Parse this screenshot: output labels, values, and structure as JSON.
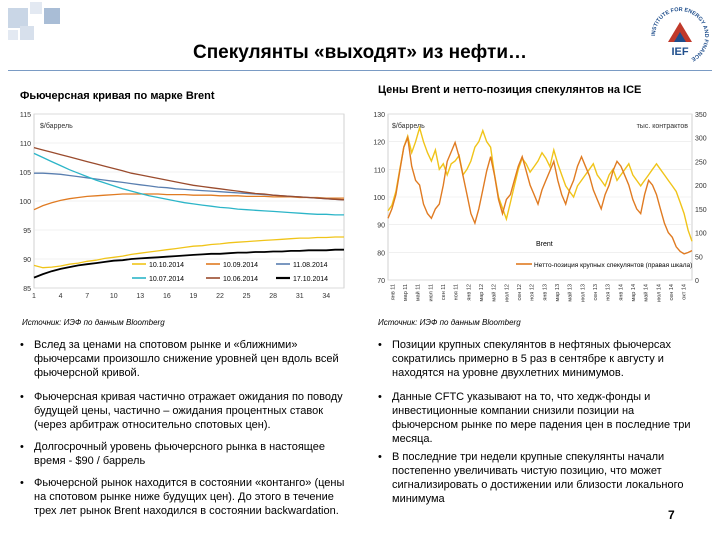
{
  "slide": {
    "title": "Спекулянты «выходят» из нефти…",
    "page_number": "7",
    "logo_text": "IEF",
    "logo_ring_text": "INSTITUTE FOR ENERGY AND FINANCE",
    "colors": {
      "accent": "#7a9bc4",
      "logo_red": "#c0392b",
      "logo_blue": "#1f4e8c"
    }
  },
  "left_chart": {
    "heading": "Фьючерсная кривая по марке Brent",
    "source": "Источник: ИЭФ по данным Bloomberg",
    "chart_data": {
      "type": "line",
      "ylabel": "$/баррель",
      "ylim": [
        85,
        115
      ],
      "yticks": [
        85,
        90,
        95,
        100,
        105,
        110,
        115
      ],
      "xticks": [
        1,
        4,
        7,
        10,
        13,
        16,
        19,
        22,
        25,
        28,
        31,
        34
      ],
      "x_range": [
        1,
        36
      ],
      "series": [
        {
          "name": "10.10.2014",
          "color": "#f0c419",
          "values": [
            88.9,
            88.5,
            88.6,
            88.8,
            89.1,
            89.3,
            89.6,
            89.8,
            90.1,
            90.3,
            90.5,
            90.8,
            91.0,
            91.2,
            91.4,
            91.6,
            91.8,
            92.0,
            92.2,
            92.3,
            92.5,
            92.6,
            92.8,
            92.9,
            93.0,
            93.1,
            93.2,
            93.3,
            93.4,
            93.5,
            93.6,
            93.6,
            93.7,
            93.7,
            93.8,
            93.8
          ]
        },
        {
          "name": "10.09.2014",
          "color": "#e07b22",
          "values": [
            98.5,
            99.2,
            99.7,
            100.1,
            100.4,
            100.6,
            100.8,
            100.9,
            101.0,
            101.1,
            101.2,
            101.2,
            101.2,
            101.2,
            101.2,
            101.1,
            101.1,
            101.1,
            101.0,
            101.0,
            101.0,
            100.9,
            100.9,
            100.9,
            100.8,
            100.8,
            100.8,
            100.7,
            100.7,
            100.7,
            100.6,
            100.6,
            100.6,
            100.5,
            100.5,
            100.5
          ]
        },
        {
          "name": "11.08.2014",
          "color": "#5a7fb0",
          "values": [
            104.8,
            104.8,
            104.7,
            104.6,
            104.4,
            104.2,
            104.0,
            103.8,
            103.6,
            103.4,
            103.2,
            103.0,
            102.8,
            102.6,
            102.4,
            102.3,
            102.1,
            102.0,
            101.9,
            101.8,
            101.7,
            101.6,
            101.5,
            101.4,
            101.3,
            101.2,
            101.1,
            101.0,
            100.9,
            100.8,
            100.7,
            100.6,
            100.5,
            100.4,
            100.3,
            100.2
          ]
        },
        {
          "name": "10.07.2014",
          "color": "#2cb5c8",
          "values": [
            108.2,
            107.5,
            106.8,
            106.1,
            105.4,
            104.8,
            104.2,
            103.6,
            103.1,
            102.6,
            102.1,
            101.7,
            101.3,
            100.9,
            100.6,
            100.3,
            100.0,
            99.7,
            99.5,
            99.3,
            99.1,
            98.9,
            98.8,
            98.6,
            98.5,
            98.4,
            98.3,
            98.2,
            98.1,
            98.0,
            97.9,
            97.8,
            97.7,
            97.7,
            97.6,
            97.6
          ]
        },
        {
          "name": "10.06.2014",
          "color": "#9a4b2d",
          "values": [
            109.2,
            108.8,
            108.4,
            108.0,
            107.6,
            107.2,
            106.8,
            106.4,
            106.0,
            105.6,
            105.2,
            104.8,
            104.5,
            104.2,
            103.9,
            103.6,
            103.3,
            103.0,
            102.7,
            102.5,
            102.3,
            102.1,
            101.9,
            101.7,
            101.5,
            101.3,
            101.2,
            101.0,
            100.9,
            100.8,
            100.7,
            100.6,
            100.5,
            100.4,
            100.3,
            100.2
          ]
        },
        {
          "name": "17.10.2014",
          "color": "#000000",
          "values": [
            86.8,
            87.4,
            87.9,
            88.3,
            88.6,
            88.9,
            89.1,
            89.3,
            89.5,
            89.7,
            89.8,
            90.0,
            90.1,
            90.2,
            90.3,
            90.4,
            90.5,
            90.6,
            90.7,
            90.8,
            90.9,
            90.9,
            91.0,
            91.1,
            91.1,
            91.2,
            91.2,
            91.3,
            91.3,
            91.4,
            91.4,
            91.5,
            91.5,
            91.5,
            91.6,
            91.6
          ]
        }
      ],
      "legend_placement": "bottom-right"
    }
  },
  "right_chart": {
    "heading": "Цены Brent и нетто-позиция спекулянтов на ICE",
    "source": "Источник: ИЭФ по данным Bloomberg",
    "chart_data": {
      "type": "line",
      "ylabel_left": "$/баррель",
      "ylabel_right": "тыс. контрактов",
      "ylim_left": [
        70,
        130
      ],
      "yticks_left": [
        70,
        80,
        90,
        100,
        110,
        120,
        130
      ],
      "ylim_right": [
        0,
        350
      ],
      "yticks_right": [
        0,
        50,
        100,
        150,
        200,
        250,
        300,
        350
      ],
      "annotations": [
        "Brent",
        "Нетто-позиция крупных спекулянтов (правая шкала)"
      ],
      "x_labels": [
        "янв 11",
        "мар 11",
        "май 11",
        "июл 11",
        "сен 11",
        "ноя 11",
        "янв 12",
        "мар 12",
        "май 12",
        "июл 12",
        "сен 12",
        "ноя 12",
        "янв 13",
        "мар 13",
        "май 13",
        "июл 13",
        "сен 13",
        "ноя 13",
        "янв 14",
        "мар 14",
        "май 14",
        "июл 14",
        "сен 14",
        "окт 14"
      ],
      "series": [
        {
          "name": "Brent",
          "color": "#f0c419",
          "axis": "left",
          "values": [
            95,
            97,
            102,
            110,
            118,
            122,
            116,
            120,
            125,
            120,
            116,
            113,
            117,
            110,
            112,
            108,
            112,
            113,
            115,
            108,
            110,
            113,
            118,
            120,
            124,
            120,
            118,
            108,
            100,
            96,
            92,
            98,
            104,
            110,
            114,
            112,
            109,
            111,
            113,
            116,
            114,
            111,
            117,
            112,
            108,
            104,
            102,
            100,
            104,
            106,
            108,
            110,
            112,
            108,
            106,
            104,
            108,
            110,
            106,
            108,
            110,
            112,
            108,
            106,
            104,
            106,
            108,
            110,
            112,
            110,
            108,
            106,
            104,
            102,
            98,
            94,
            88,
            84
          ]
        },
        {
          "name": "Нетто-позиция крупных спекулянтов (правая шкала)",
          "color": "#e07b22",
          "axis": "right",
          "values": [
            130,
            150,
            180,
            230,
            280,
            300,
            240,
            210,
            200,
            160,
            140,
            130,
            150,
            160,
            200,
            250,
            270,
            290,
            260,
            220,
            180,
            140,
            120,
            150,
            190,
            230,
            260,
            220,
            170,
            140,
            170,
            180,
            210,
            240,
            260,
            230,
            200,
            180,
            160,
            190,
            210,
            230,
            250,
            210,
            180,
            160,
            190,
            210,
            240,
            260,
            240,
            220,
            190,
            170,
            150,
            180,
            200,
            230,
            250,
            240,
            220,
            200,
            170,
            150,
            140,
            180,
            210,
            200,
            180,
            150,
            120,
            100,
            90,
            70,
            60,
            55,
            58,
            62
          ]
        }
      ]
    }
  },
  "bullets_left": [
    "Вслед за ценами на спотовом рынке и «ближними» фьючерсами произошло снижение уровней цен вдоль всей фьючерсной кривой.",
    "Фьючерсная кривая частично отражает ожидания по поводу будущей цены, частично – ожидания процентных ставок (через арбитраж относительно спотовых цен).",
    "Долгосрочный уровень фьючерсного рынка в настоящее время - $90 / баррель",
    "Фьючерсной рынок находится в состоянии «контанго» (цены на спотовом рынке ниже будущих цен). До этого в течение трех лет рынок Brent находился в состоянии backwardation."
  ],
  "bullets_right": [
    "Позиции крупных спекулянтов в нефтяных фьючерсах сократились примерно в 5 раз в сентябре к августу и находятся на уровне двухлетних минимумов.",
    "Данные CFTC указывают на то, что хедж-фонды и инвестиционные компании снизили позиции на фьючерсном рынке по мере падения цен в последние три месяца.",
    "В последние три недели крупные спекулянты начали постепенно увеличивать чистую позицию, что может сигнализировать о достижении или близости локального минимума"
  ]
}
